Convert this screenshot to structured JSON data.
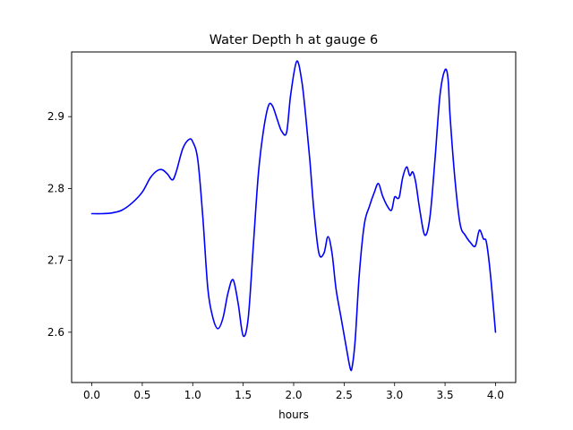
{
  "chart_data": {
    "type": "line",
    "title": "Water Depth h at gauge 6",
    "xlabel": "hours",
    "ylabel": "",
    "xlim": [
      -0.2,
      4.2
    ],
    "ylim": [
      2.53,
      2.99
    ],
    "xticks": [
      0.0,
      0.5,
      1.0,
      1.5,
      2.0,
      2.5,
      3.0,
      3.5,
      4.0
    ],
    "xtick_labels": [
      "0.0",
      "0.5",
      "1.0",
      "1.5",
      "2.0",
      "2.5",
      "3.0",
      "3.5",
      "4.0"
    ],
    "yticks": [
      2.6,
      2.7,
      2.8,
      2.9
    ],
    "ytick_labels": [
      "2.6",
      "2.7",
      "2.8",
      "2.9"
    ],
    "grid": false,
    "line_color": "#0000ff",
    "series": [
      {
        "x": [
          0.0,
          0.1,
          0.2,
          0.3,
          0.4,
          0.5,
          0.58,
          0.65,
          0.7,
          0.75,
          0.8,
          0.84,
          0.9,
          0.96,
          1.0,
          1.05,
          1.1,
          1.15,
          1.2,
          1.25,
          1.3,
          1.35,
          1.4,
          1.45,
          1.5,
          1.55,
          1.6,
          1.65,
          1.7,
          1.75,
          1.79,
          1.84,
          1.88,
          1.93,
          1.97,
          2.03,
          2.08,
          2.12,
          2.16,
          2.2,
          2.25,
          2.3,
          2.34,
          2.38,
          2.42,
          2.47,
          2.52,
          2.56,
          2.58,
          2.61,
          2.65,
          2.7,
          2.75,
          2.8,
          2.84,
          2.88,
          2.93,
          2.97,
          3.0,
          3.03,
          3.05,
          3.08,
          3.12,
          3.15,
          3.18,
          3.21,
          3.25,
          3.3,
          3.35,
          3.4,
          3.45,
          3.5,
          3.53,
          3.55,
          3.6,
          3.65,
          3.7,
          3.75,
          3.8,
          3.84,
          3.88,
          3.91,
          3.95,
          4.0
        ],
        "y": [
          2.765,
          2.765,
          2.766,
          2.77,
          2.78,
          2.795,
          2.815,
          2.825,
          2.826,
          2.82,
          2.812,
          2.825,
          2.855,
          2.868,
          2.865,
          2.84,
          2.76,
          2.66,
          2.62,
          2.605,
          2.62,
          2.655,
          2.673,
          2.64,
          2.595,
          2.62,
          2.72,
          2.82,
          2.88,
          2.915,
          2.915,
          2.895,
          2.88,
          2.878,
          2.93,
          2.977,
          2.95,
          2.9,
          2.84,
          2.77,
          2.71,
          2.71,
          2.733,
          2.71,
          2.66,
          2.62,
          2.58,
          2.55,
          2.552,
          2.59,
          2.68,
          2.75,
          2.775,
          2.795,
          2.807,
          2.79,
          2.775,
          2.77,
          2.788,
          2.786,
          2.79,
          2.815,
          2.83,
          2.818,
          2.823,
          2.808,
          2.77,
          2.735,
          2.76,
          2.84,
          2.93,
          2.965,
          2.952,
          2.9,
          2.81,
          2.75,
          2.735,
          2.725,
          2.72,
          2.742,
          2.73,
          2.725,
          2.68,
          2.6
        ]
      }
    ]
  }
}
